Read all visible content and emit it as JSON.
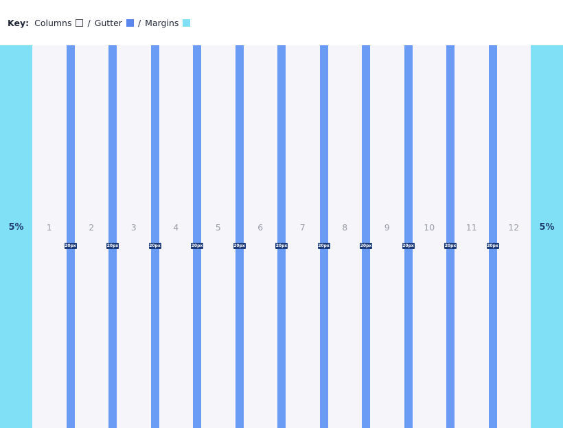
{
  "key": {
    "label": "Key:",
    "columns": "Columns",
    "sep": "/",
    "gutter": "Gutter",
    "margins": "Margins",
    "colors": {
      "columns": "#f6f6fa",
      "gutter": "#6b9cf5",
      "margins": "#7fe0f6"
    }
  },
  "margins": {
    "left": "5%",
    "right": "5%"
  },
  "columns": [
    "1",
    "2",
    "3",
    "4",
    "5",
    "6",
    "7",
    "8",
    "9",
    "10",
    "11",
    "12"
  ],
  "gutter_label": "20px"
}
